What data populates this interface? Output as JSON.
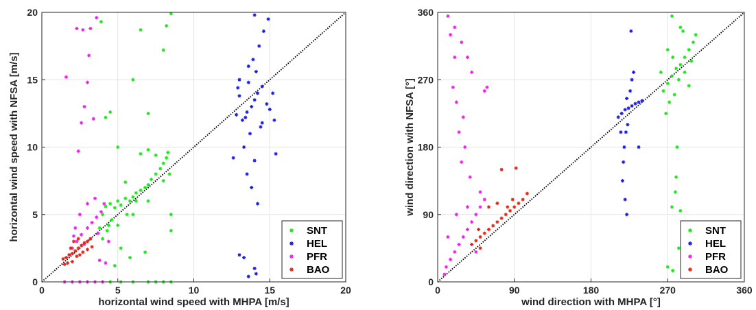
{
  "chart_data": [
    {
      "type": "scatter",
      "xlabel": "horizontal wind speed with MHPA [m/s]",
      "ylabel": "horizontal wind speed with NFSA [m/s]",
      "xlim": [
        0,
        20
      ],
      "ylim": [
        0,
        20
      ],
      "xticks": [
        "0",
        "5",
        "10",
        "15",
        "20"
      ],
      "yticks": [
        "0",
        "5",
        "10",
        "15",
        "20"
      ],
      "grid": true,
      "reference_line": "y = x (dotted)",
      "legend_position": "bottom-right",
      "marker": "*",
      "series": [
        {
          "name": "SNT",
          "color": "#17e817",
          "points": [
            [
              3.8,
              4.0
            ],
            [
              4.0,
              5.0
            ],
            [
              4.2,
              5.6
            ],
            [
              4.5,
              5.8
            ],
            [
              4.8,
              5.5
            ],
            [
              5.0,
              6.0
            ],
            [
              5.2,
              5.7
            ],
            [
              5.5,
              6.2
            ],
            [
              5.8,
              6.0
            ],
            [
              6.0,
              6.3
            ],
            [
              6.2,
              6.6
            ],
            [
              6.5,
              6.8
            ],
            [
              6.8,
              7.0
            ],
            [
              7.0,
              7.2
            ],
            [
              7.2,
              7.6
            ],
            [
              7.5,
              8.0
            ],
            [
              7.8,
              8.4
            ],
            [
              8.0,
              8.8
            ],
            [
              8.2,
              9.2
            ],
            [
              8.3,
              9.6
            ],
            [
              7.0,
              9.8
            ],
            [
              6.2,
              6.0
            ],
            [
              5.6,
              5.0
            ],
            [
              4.6,
              4.6
            ],
            [
              4.3,
              3.8
            ],
            [
              5.0,
              4.2
            ],
            [
              6.0,
              5.0
            ],
            [
              7.0,
              6.0
            ],
            [
              8.0,
              7.5
            ],
            [
              8.4,
              8.0
            ],
            [
              8.5,
              5.0
            ],
            [
              8.5,
              3.8
            ],
            [
              4.2,
              12.2
            ],
            [
              4.5,
              12.6
            ],
            [
              3.9,
              19.3
            ],
            [
              6.5,
              18.7
            ],
            [
              8.5,
              19.9
            ],
            [
              8.2,
              19.0
            ],
            [
              8.0,
              17.2
            ],
            [
              7.0,
              12.5
            ],
            [
              6.0,
              15.0
            ],
            [
              5.0,
              10.0
            ],
            [
              5.2,
              2.5
            ],
            [
              5.8,
              1.8
            ],
            [
              4.8,
              1.2
            ],
            [
              6.8,
              2.2
            ],
            [
              4.5,
              0.0
            ],
            [
              5.2,
              0.0
            ],
            [
              6.0,
              0.0
            ],
            [
              7.0,
              0.0
            ],
            [
              7.5,
              0.0
            ],
            [
              8.0,
              0.0
            ],
            [
              8.5,
              0.0
            ],
            [
              6.5,
              9.5
            ],
            [
              7.5,
              9.4
            ],
            [
              5.5,
              7.4
            ],
            [
              4.0,
              3.2
            ],
            [
              4.4,
              4.2
            ]
          ]
        },
        {
          "name": "HEL",
          "color": "#1a1ae6",
          "points": [
            [
              13.2,
              12.0
            ],
            [
              13.5,
              12.6
            ],
            [
              13.8,
              13.0
            ],
            [
              14.0,
              13.5
            ],
            [
              14.2,
              14.0
            ],
            [
              14.5,
              14.5
            ],
            [
              14.8,
              13.2
            ],
            [
              15.0,
              12.8
            ],
            [
              13.0,
              13.8
            ],
            [
              12.8,
              12.4
            ],
            [
              13.6,
              14.8
            ],
            [
              14.1,
              15.6
            ],
            [
              13.9,
              16.5
            ],
            [
              14.3,
              17.5
            ],
            [
              14.6,
              18.6
            ],
            [
              14.9,
              19.5
            ],
            [
              14.0,
              19.8
            ],
            [
              13.6,
              16.0
            ],
            [
              14.4,
              11.5
            ],
            [
              13.7,
              11.0
            ],
            [
              13.3,
              10.0
            ],
            [
              14.0,
              9.0
            ],
            [
              13.8,
              7.0
            ],
            [
              14.2,
              5.8
            ],
            [
              13.5,
              8.0
            ],
            [
              12.6,
              9.2
            ],
            [
              15.4,
              9.5
            ],
            [
              15.3,
              12.0
            ],
            [
              15.2,
              14.0
            ],
            [
              13.0,
              15.0
            ],
            [
              13.0,
              2.0
            ],
            [
              13.3,
              1.8
            ],
            [
              13.6,
              0.4
            ],
            [
              14.0,
              1.0
            ],
            [
              14.1,
              0.6
            ],
            [
              14.5,
              11.8
            ],
            [
              13.4,
              12.2
            ],
            [
              12.9,
              14.4
            ]
          ]
        },
        {
          "name": "PFR",
          "color": "#f01ef0",
          "points": [
            [
              2.0,
              2.5
            ],
            [
              2.3,
              3.0
            ],
            [
              2.6,
              3.5
            ],
            [
              3.0,
              4.0
            ],
            [
              3.3,
              4.4
            ],
            [
              3.6,
              4.8
            ],
            [
              3.9,
              5.2
            ],
            [
              4.1,
              5.8
            ],
            [
              2.8,
              2.8
            ],
            [
              3.2,
              3.2
            ],
            [
              1.8,
              2.0
            ],
            [
              2.2,
              4.0
            ],
            [
              2.5,
              5.0
            ],
            [
              3.0,
              5.8
            ],
            [
              3.5,
              6.2
            ],
            [
              1.6,
              15.2
            ],
            [
              2.4,
              9.7
            ],
            [
              2.6,
              11.8
            ],
            [
              2.8,
              13.0
            ],
            [
              3.0,
              14.8
            ],
            [
              3.1,
              16.8
            ],
            [
              2.7,
              18.7
            ],
            [
              3.2,
              18.8
            ],
            [
              3.6,
              19.6
            ],
            [
              2.3,
              18.8
            ],
            [
              3.4,
              12.1
            ],
            [
              3.8,
              1.6
            ],
            [
              4.2,
              1.4
            ],
            [
              2.0,
              0.0
            ],
            [
              2.5,
              0.0
            ],
            [
              3.0,
              0.0
            ],
            [
              3.5,
              0.0
            ],
            [
              4.0,
              0.0
            ],
            [
              1.5,
              0.0
            ],
            [
              4.4,
              3.0
            ],
            [
              2.1,
              3.4
            ],
            [
              3.7,
              3.6
            ]
          ]
        },
        {
          "name": "BAO",
          "color": "#e62415",
          "points": [
            [
              1.4,
              1.7
            ],
            [
              1.6,
              1.8
            ],
            [
              1.8,
              2.0
            ],
            [
              2.0,
              2.1
            ],
            [
              2.2,
              2.3
            ],
            [
              2.4,
              2.5
            ],
            [
              2.6,
              2.7
            ],
            [
              2.8,
              2.9
            ],
            [
              3.0,
              3.0
            ],
            [
              3.2,
              3.2
            ],
            [
              1.5,
              1.3
            ],
            [
              2.0,
              1.5
            ],
            [
              2.5,
              2.0
            ],
            [
              3.0,
              2.4
            ],
            [
              3.3,
              2.6
            ],
            [
              2.1,
              3.0
            ],
            [
              2.4,
              3.2
            ],
            [
              1.9,
              2.5
            ],
            [
              1.7,
              1.4
            ],
            [
              2.3,
              1.9
            ],
            [
              2.7,
              2.2
            ]
          ]
        }
      ]
    },
    {
      "type": "scatter",
      "xlabel": "wind direction with MHPA [°]",
      "ylabel": "wind direction with NFSA [°]",
      "xlim": [
        0,
        360
      ],
      "ylim": [
        0,
        360
      ],
      "xticks": [
        "0",
        "90",
        "180",
        "270",
        "360"
      ],
      "yticks": [
        "0",
        "90",
        "180",
        "270",
        "360"
      ],
      "grid": true,
      "reference_line": "y = x (dotted)",
      "legend_position": "bottom-right",
      "marker": "*",
      "series": [
        {
          "name": "SNT",
          "color": "#17e817",
          "points": [
            [
              265,
              255
            ],
            [
              270,
              265
            ],
            [
              275,
              275
            ],
            [
              280,
              285
            ],
            [
              285,
              290
            ],
            [
              290,
              300
            ],
            [
              295,
              310
            ],
            [
              300,
              320
            ],
            [
              303,
              330
            ],
            [
              285,
              340
            ],
            [
              275,
              355
            ],
            [
              270,
              310
            ],
            [
              272,
              240
            ],
            [
              268,
              225
            ],
            [
              278,
              250
            ],
            [
              290,
              280
            ],
            [
              298,
              295
            ],
            [
              283,
              270
            ],
            [
              276,
              300
            ],
            [
              288,
              335
            ],
            [
              281,
              180
            ],
            [
              280,
              140
            ],
            [
              279,
              120
            ],
            [
              275,
              100
            ],
            [
              285,
              95
            ],
            [
              270,
              20
            ],
            [
              276,
              15
            ],
            [
              283,
              45
            ],
            [
              262,
              280
            ],
            [
              295,
              262
            ]
          ]
        },
        {
          "name": "HEL",
          "color": "#1a1ae6",
          "points": [
            [
              212,
              220
            ],
            [
              216,
              225
            ],
            [
              220,
              230
            ],
            [
              224,
              232
            ],
            [
              228,
              235
            ],
            [
              232,
              238
            ],
            [
              236,
              240
            ],
            [
              240,
              242
            ],
            [
              222,
              245
            ],
            [
              226,
              255
            ],
            [
              228,
              270
            ],
            [
              230,
              280
            ],
            [
              227,
              335
            ],
            [
              223,
              210
            ],
            [
              221,
              200
            ],
            [
              219,
              180
            ],
            [
              218,
              160
            ],
            [
              217,
              135
            ],
            [
              220,
              110
            ],
            [
              222,
              90
            ],
            [
              236,
              180
            ],
            [
              215,
              200
            ]
          ]
        },
        {
          "name": "PFR",
          "color": "#f01ef0",
          "points": [
            [
              10,
              20
            ],
            [
              15,
              30
            ],
            [
              20,
              40
            ],
            [
              25,
              50
            ],
            [
              30,
              60
            ],
            [
              35,
              70
            ],
            [
              40,
              80
            ],
            [
              45,
              90
            ],
            [
              50,
              100
            ],
            [
              55,
              110
            ],
            [
              12,
              355
            ],
            [
              20,
              340
            ],
            [
              28,
              320
            ],
            [
              35,
              300
            ],
            [
              40,
              280
            ],
            [
              18,
              260
            ],
            [
              22,
              240
            ],
            [
              30,
              220
            ],
            [
              25,
              200
            ],
            [
              32,
              180
            ],
            [
              28,
              160
            ],
            [
              38,
              140
            ],
            [
              50,
              120
            ],
            [
              55,
              255
            ],
            [
              58,
              260
            ],
            [
              20,
              300
            ],
            [
              15,
              330
            ],
            [
              8,
              10
            ],
            [
              12,
              60
            ],
            [
              22,
              90
            ],
            [
              35,
              100
            ],
            [
              45,
              40
            ]
          ]
        },
        {
          "name": "BAO",
          "color": "#e62415",
          "points": [
            [
              40,
              50
            ],
            [
              45,
              55
            ],
            [
              50,
              60
            ],
            [
              55,
              65
            ],
            [
              60,
              70
            ],
            [
              65,
              75
            ],
            [
              70,
              80
            ],
            [
              75,
              85
            ],
            [
              80,
              90
            ],
            [
              85,
              95
            ],
            [
              90,
              100
            ],
            [
              95,
              105
            ],
            [
              100,
              110
            ],
            [
              105,
              118
            ],
            [
              75,
              150
            ],
            [
              92,
              152
            ],
            [
              60,
              100
            ],
            [
              70,
              105
            ],
            [
              50,
              45
            ],
            [
              48,
              70
            ],
            [
              82,
              100
            ],
            [
              88,
              110
            ]
          ]
        }
      ]
    }
  ]
}
